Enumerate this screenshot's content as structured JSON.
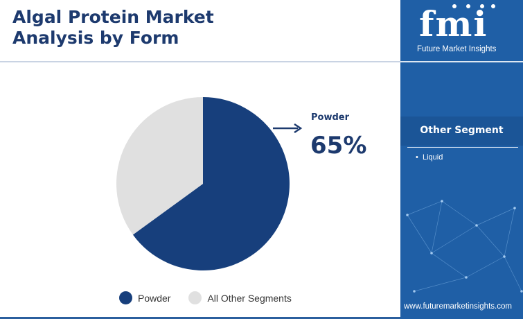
{
  "header": {
    "title_line1": "Algal Protein Market",
    "title_line2": "Analysis by Form"
  },
  "chart_data": {
    "type": "pie",
    "title": "Algal Protein Market Analysis by Form",
    "slices": [
      {
        "label": "Powder",
        "value": 65,
        "color": "#173f7c"
      },
      {
        "label": "All Other Segments",
        "value": 35,
        "color": "#e0e0e0"
      }
    ],
    "callout": {
      "label": "Powder",
      "value_text": "65%"
    },
    "legend": [
      "Powder",
      "All Other Segments"
    ],
    "legend_placement": "bottom"
  },
  "sidebar": {
    "logo_text": "fmi",
    "logo_subtitle": "Future Market Insights",
    "segment_title": "Other Segment",
    "segment_items": [
      "Liquid"
    ],
    "url": "www.futuremarketinsights.com"
  },
  "colors": {
    "brand_navy": "#1d3a6e",
    "sidebar_blue": "#1f5fa6",
    "pie_primary": "#173f7c",
    "pie_secondary": "#e0e0e0"
  }
}
